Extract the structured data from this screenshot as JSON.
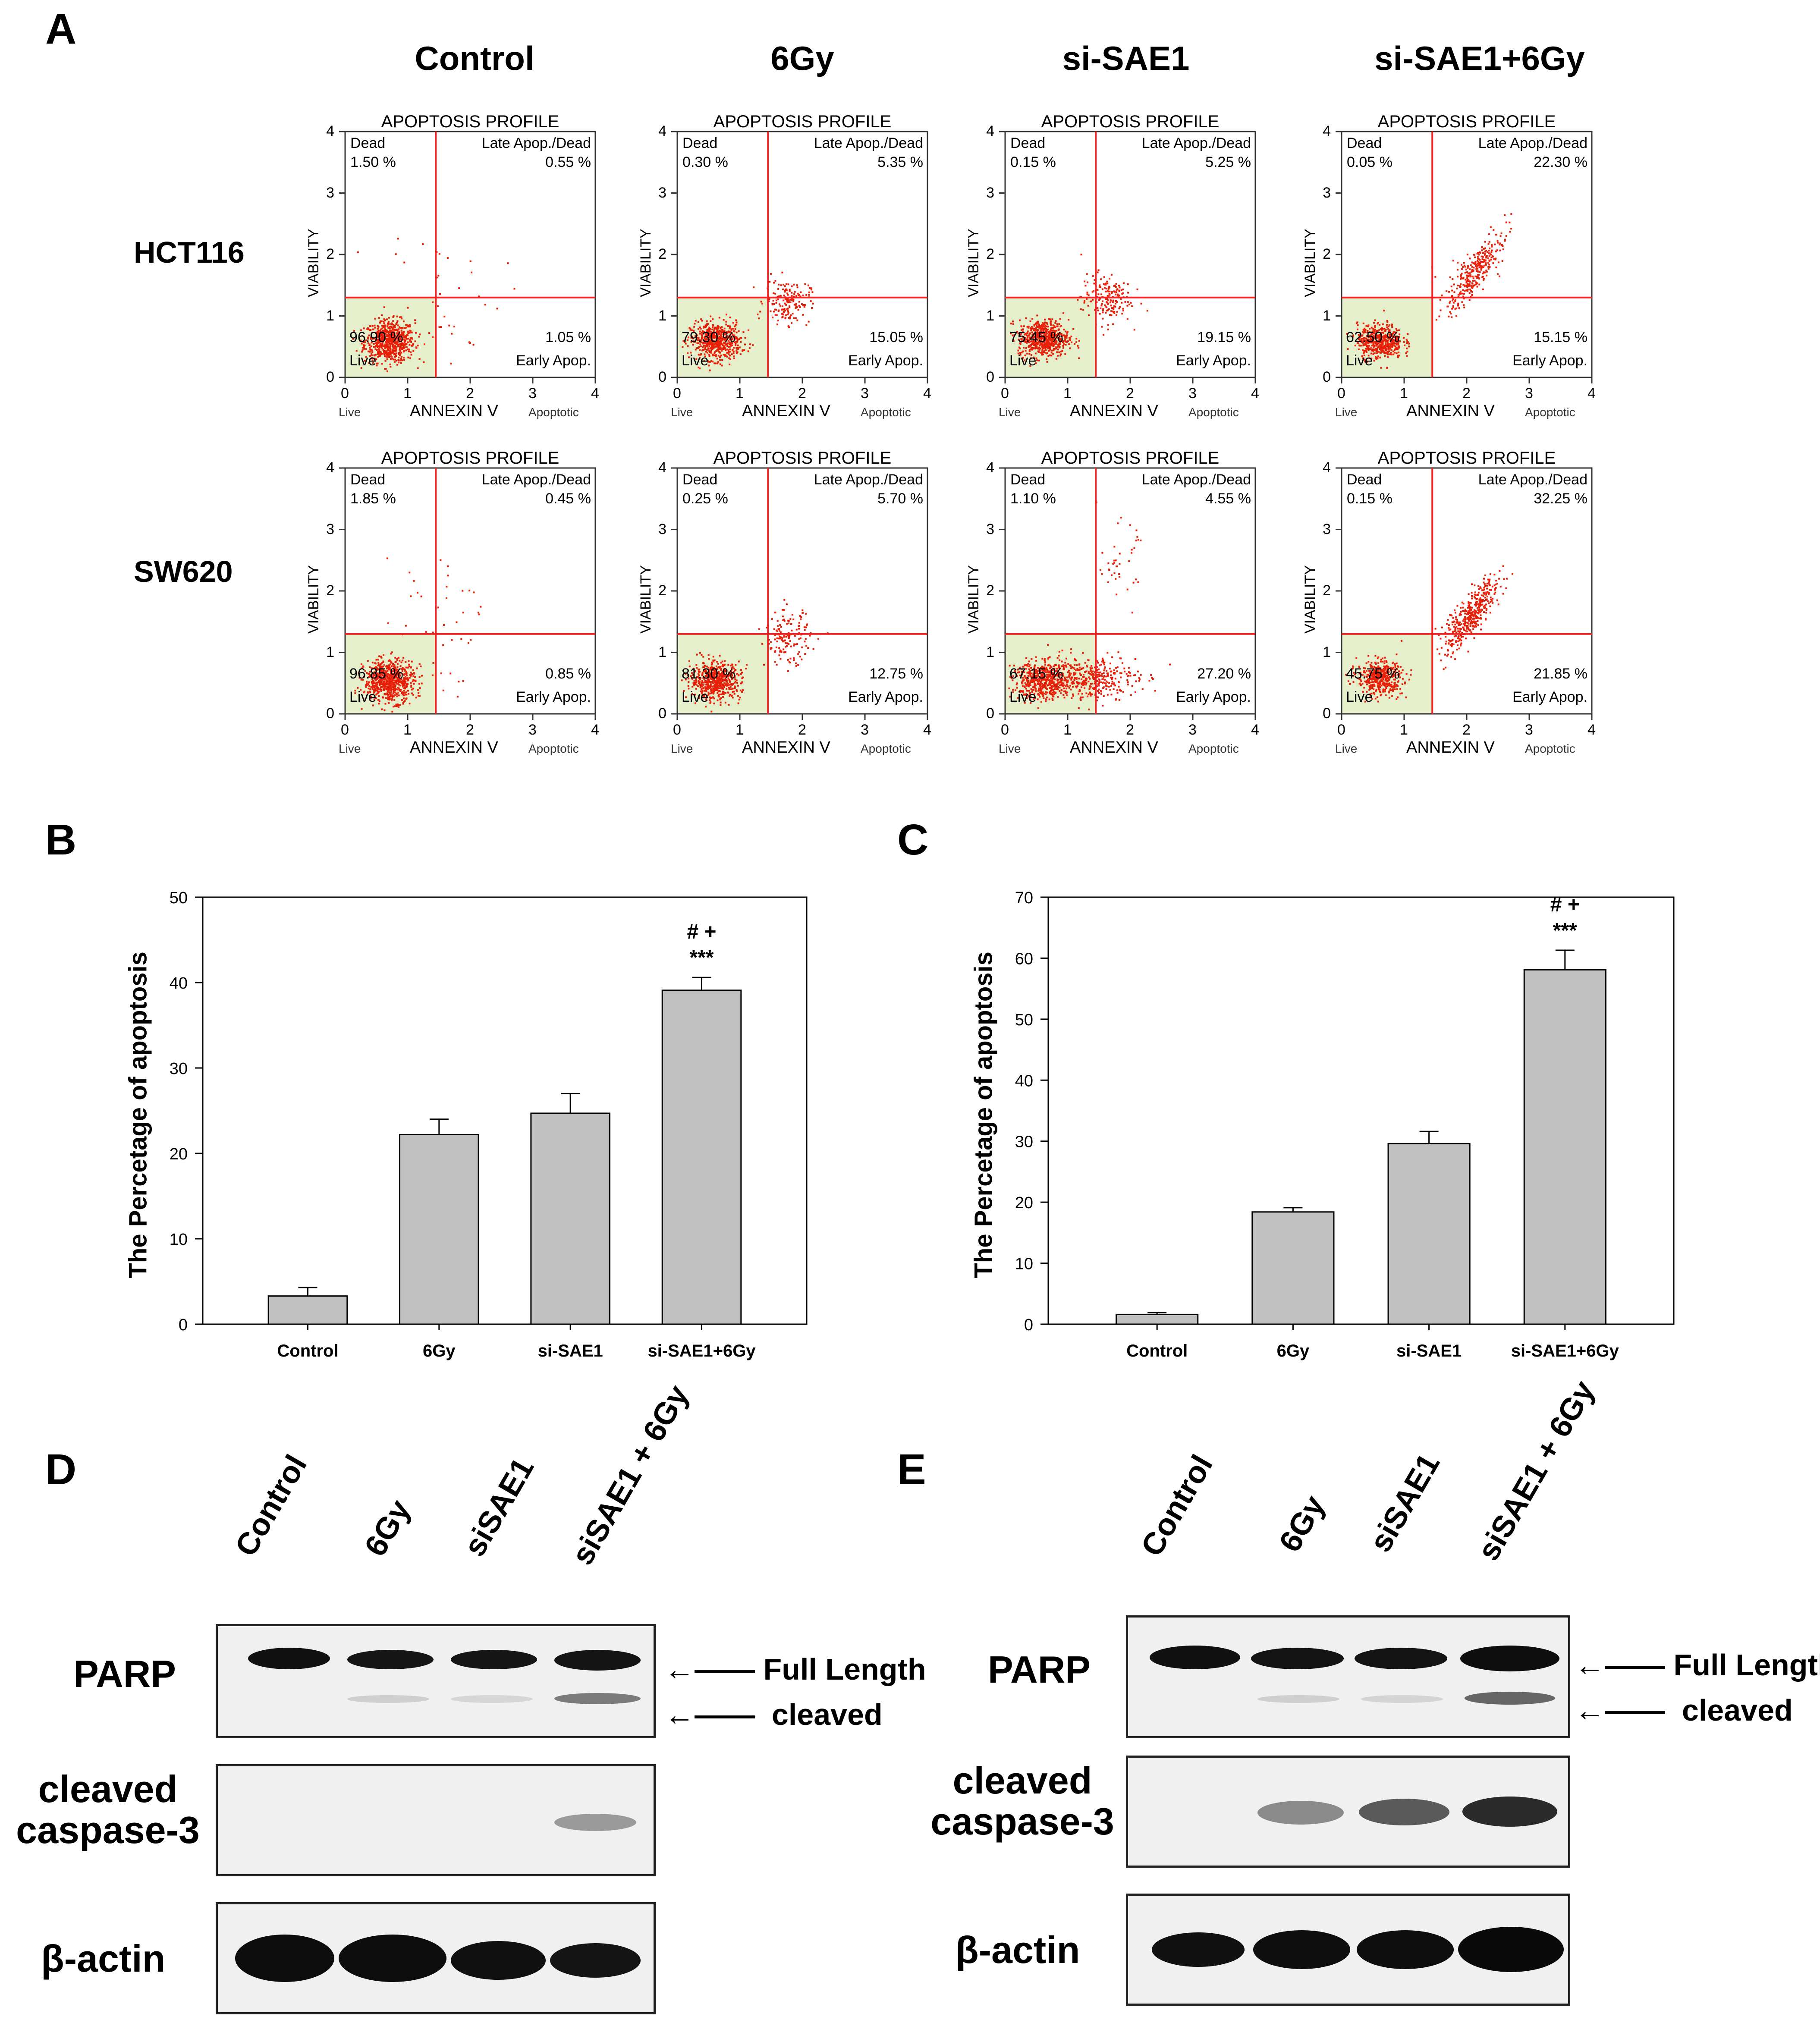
{
  "panels": {
    "A": "A",
    "B": "B",
    "C": "C",
    "D": "D",
    "E": "E"
  },
  "flow": {
    "columns": [
      "Control",
      "6Gy",
      "si-SAE1",
      "si-SAE1+6Gy"
    ],
    "rows": [
      "HCT116",
      "SW620"
    ],
    "title": "APOPTOSIS PROFILE",
    "ylabel": "VIABILITY",
    "xlabel": "ANNEXIN V",
    "live_axis": "Live",
    "apoptotic_axis": "Apoptotic",
    "q_dead": "Dead",
    "q_late": "Late Apop./Dead",
    "q_live": "Live",
    "q_early": "Early Apop.",
    "ticks": [
      "0",
      "1",
      "2",
      "3",
      "4"
    ],
    "plots": [
      {
        "row": 0,
        "col": 0,
        "dead": "1.50 %",
        "late": "0.55 %",
        "live": "96.90 %",
        "early": "1.05 %"
      },
      {
        "row": 0,
        "col": 1,
        "dead": "0.30 %",
        "late": "5.35 %",
        "live": "79.30 %",
        "early": "15.05 %"
      },
      {
        "row": 0,
        "col": 2,
        "dead": "0.15 %",
        "late": "5.25 %",
        "live": "75.45 %",
        "early": "19.15 %"
      },
      {
        "row": 0,
        "col": 3,
        "dead": "0.05 %",
        "late": "22.30 %",
        "live": "62.50 %",
        "early": "15.15 %"
      },
      {
        "row": 1,
        "col": 0,
        "dead": "1.85 %",
        "late": "0.45 %",
        "live": "96.85 %",
        "early": "0.85 %"
      },
      {
        "row": 1,
        "col": 1,
        "dead": "0.25 %",
        "late": "5.70 %",
        "live": "81.30 %",
        "early": "12.75 %"
      },
      {
        "row": 1,
        "col": 2,
        "dead": "1.10 %",
        "late": "4.55 %",
        "live": "67.15 %",
        "early": "27.20 %"
      },
      {
        "row": 1,
        "col": 3,
        "dead": "0.15 %",
        "late": "32.25 %",
        "live": "45.75 %",
        "early": "21.85 %"
      }
    ],
    "colors": {
      "dot": "#e8200a",
      "gate": "#ee2222",
      "live_fill": "#e6efcc"
    }
  },
  "chart_data": [
    {
      "type": "bar",
      "panel": "B",
      "categories": [
        "Control",
        "6Gy",
        "si-SAE1",
        "si-SAE1+6Gy"
      ],
      "values": [
        3.3,
        22.2,
        24.7,
        39.1
      ],
      "errors": [
        1.0,
        1.8,
        2.3,
        1.5
      ],
      "ylabel": "The Percetage of apoptosis",
      "ylim": [
        0,
        50
      ],
      "yticks": [
        "0",
        "10",
        "20",
        "30",
        "40",
        "50"
      ],
      "annotation_top": "# +",
      "annotation_sig": "***"
    },
    {
      "type": "bar",
      "panel": "C",
      "categories": [
        "Control",
        "6Gy",
        "si-SAE1",
        "si-SAE1+6Gy"
      ],
      "values": [
        1.6,
        18.4,
        29.6,
        58.1
      ],
      "errors": [
        0.3,
        0.7,
        2.0,
        3.2
      ],
      "ylabel": "The Percetage of apoptosis",
      "ylim": [
        0,
        70
      ],
      "yticks": [
        "0",
        "10",
        "20",
        "30",
        "40",
        "50",
        "60",
        "70"
      ],
      "annotation_top": "# +",
      "annotation_sig": "***"
    }
  ],
  "blots": {
    "lanes_D": [
      "Control",
      "6Gy",
      "siSAE1",
      "siSAE1 + 6Gy"
    ],
    "lanes_E": [
      "Control",
      "6Gy",
      "siSAE1",
      "siSAE1 + 6Gy"
    ],
    "parp": "PARP",
    "caspase_line1": "cleaved",
    "caspase_line2": "caspase-3",
    "actin": "β-actin",
    "full_length": "Full Length",
    "cleaved": "cleaved"
  },
  "colors": {
    "bar_fill": "#c0c0c0",
    "band": "#111111"
  }
}
